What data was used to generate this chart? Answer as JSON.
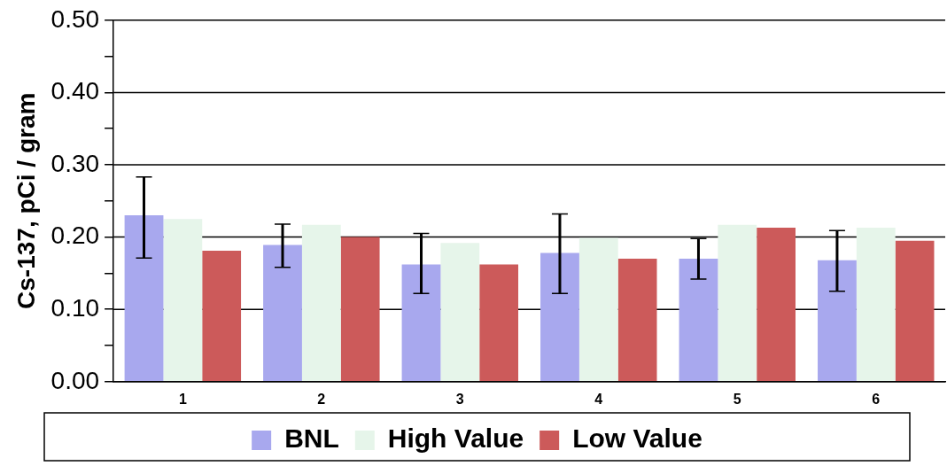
{
  "chart_data": {
    "type": "bar",
    "ylabel": "Cs-137, pCi / gram",
    "categories": [
      "1",
      "2",
      "3",
      "4",
      "5",
      "6"
    ],
    "series": [
      {
        "name": "BNL",
        "color": "#a8a8ee",
        "values": [
          0.23,
          0.189,
          0.162,
          0.178,
          0.17,
          0.168
        ],
        "errors": [
          [
            0.171,
            0.283
          ],
          [
            0.158,
            0.218
          ],
          [
            0.122,
            0.205
          ],
          [
            0.122,
            0.232
          ],
          [
            0.142,
            0.198
          ],
          [
            0.125,
            0.209
          ]
        ]
      },
      {
        "name": "High Value",
        "color": "#e6f5ea",
        "values": [
          0.225,
          0.217,
          0.192,
          0.199,
          0.217,
          0.213
        ]
      },
      {
        "name": "Low Value",
        "color": "#cc5a5a",
        "values": [
          0.181,
          0.2,
          0.162,
          0.17,
          0.213,
          0.195
        ]
      }
    ],
    "ylim": [
      0,
      0.5
    ],
    "yticks": [
      {
        "value": 0,
        "label": "0.00"
      },
      {
        "value": 0.05,
        "label": null
      },
      {
        "value": 0.1,
        "label": "0.10"
      },
      {
        "value": 0.15,
        "label": null
      },
      {
        "value": 0.2,
        "label": "0.20"
      },
      {
        "value": 0.25,
        "label": null
      },
      {
        "value": 0.3,
        "label": "0.30"
      },
      {
        "value": 0.35,
        "label": null
      },
      {
        "value": 0.4,
        "label": "0.40"
      },
      {
        "value": 0.45,
        "label": null
      },
      {
        "value": 0.5,
        "label": "0.50"
      }
    ],
    "grid": "y",
    "legend": "bottom"
  }
}
